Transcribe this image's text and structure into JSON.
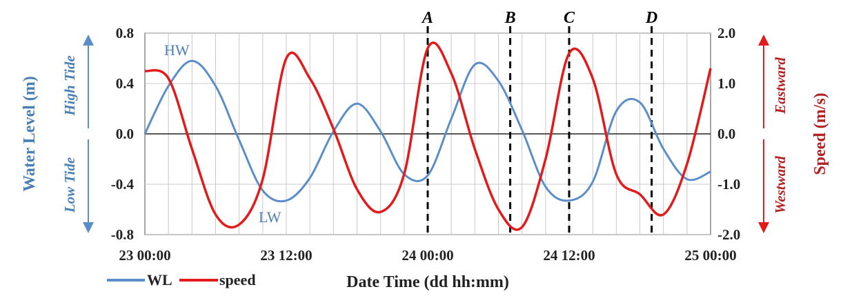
{
  "chart_data": {
    "type": "line",
    "x": [
      "23 00:00",
      "23 02:00",
      "23 04:00",
      "23 06:00",
      "23 08:00",
      "23 10:00",
      "23 12:00",
      "23 14:00",
      "23 16:00",
      "23 18:00",
      "23 20:00",
      "23 22:00",
      "24 00:00",
      "24 02:00",
      "24 04:00",
      "24 06:00",
      "24 08:00",
      "24 10:00",
      "24 12:00",
      "24 14:00",
      "24 16:00",
      "24 18:00",
      "24 20:00",
      "24 22:00",
      "25 00:00"
    ],
    "x_ticks": [
      "23 00:00",
      "23 12:00",
      "24 00:00",
      "24 12:00",
      "25 00:00"
    ],
    "xlabel": "Date Time (dd hh:mm)",
    "ylabel_left": "Water Level (m)",
    "ylabel_right": "Speed (m/s)",
    "ylim_left": [
      -0.8,
      0.8
    ],
    "ylim_right": [
      -2.0,
      2.0
    ],
    "yticks_left": [
      "0.8",
      "0.4",
      "0.0",
      "-0.4",
      "-0.8"
    ],
    "yticks_right": [
      "2.0",
      "1.0",
      "0.0",
      "-1.0",
      "-2.0"
    ],
    "series": [
      {
        "name": "WL",
        "axis": "left",
        "color": "#5b8ec9",
        "values": [
          0.0,
          0.38,
          0.58,
          0.38,
          -0.05,
          -0.45,
          -0.53,
          -0.35,
          0.02,
          0.24,
          0.02,
          -0.32,
          -0.33,
          0.12,
          0.55,
          0.42,
          0.03,
          -0.42,
          -0.53,
          -0.38,
          0.18,
          0.25,
          -0.12,
          -0.36,
          -0.3
        ]
      },
      {
        "name": "speed",
        "axis": "right",
        "color": "#e31a1c",
        "values": [
          1.25,
          1.1,
          -0.3,
          -1.6,
          -1.8,
          -0.9,
          1.5,
          1.1,
          0.1,
          -1.1,
          -1.55,
          -0.8,
          1.7,
          1.2,
          -0.3,
          -1.5,
          -1.85,
          -0.5,
          1.6,
          1.1,
          -0.8,
          -1.2,
          -1.6,
          -0.6,
          1.3
        ]
      }
    ],
    "events": [
      {
        "label": "A",
        "x": "24 00:00"
      },
      {
        "label": "B",
        "x": "24 07:00"
      },
      {
        "label": "C",
        "x": "24 12:00"
      },
      {
        "label": "D",
        "x": "24 19:00"
      }
    ],
    "annotations": [
      {
        "text": "HW",
        "series": "WL"
      },
      {
        "text": "LW",
        "series": "WL"
      }
    ],
    "tide_labels": {
      "high": "High Tide",
      "low": "Low Tide",
      "eastward": "Eastward",
      "westward": "Westward"
    },
    "legend": [
      "WL",
      "speed"
    ],
    "legend_position": "bottom-left",
    "grid": true
  }
}
